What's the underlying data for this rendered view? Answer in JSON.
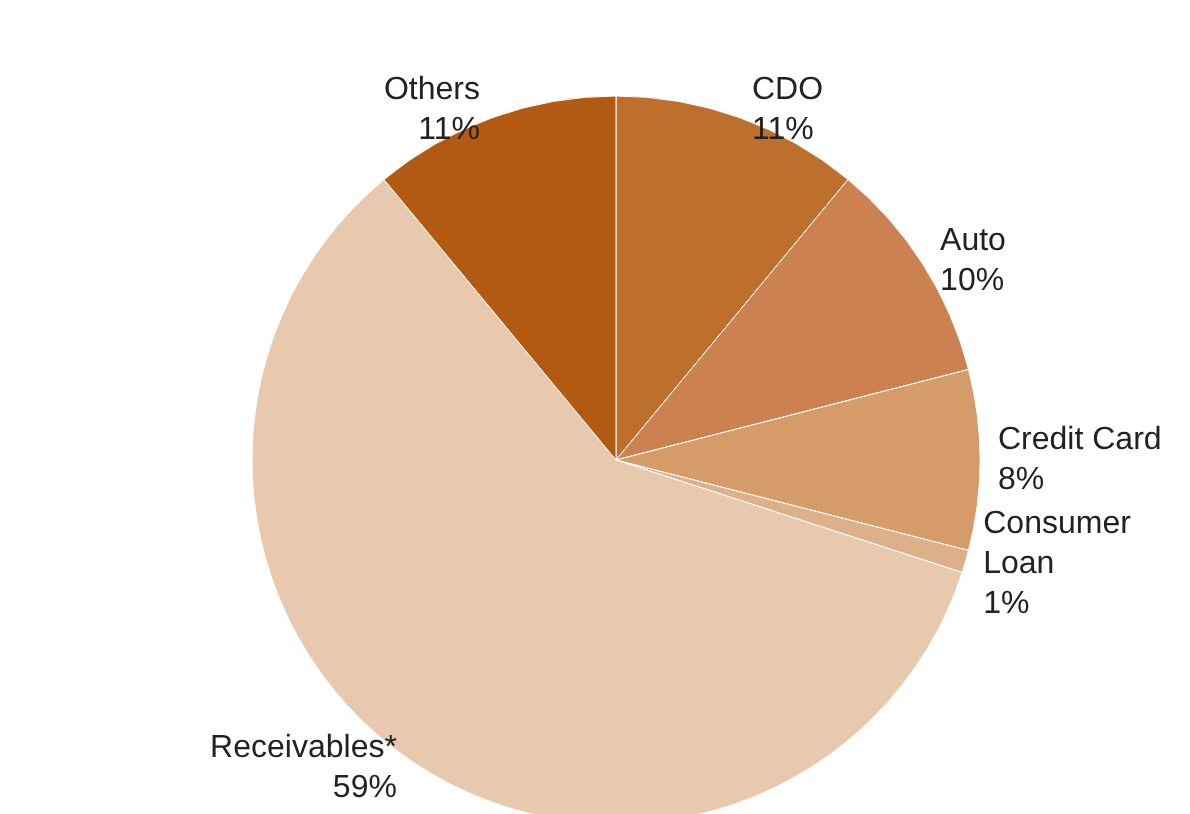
{
  "chart_data": {
    "type": "pie",
    "categories": [
      "CDO",
      "Auto",
      "Credit Card",
      "Consumer Loan",
      "Receivables*",
      "Others"
    ],
    "values": [
      11,
      10,
      8,
      1,
      59,
      11
    ],
    "value_labels": [
      "11%",
      "10%",
      "8%",
      "1%",
      "59%",
      "11%"
    ],
    "colors": [
      "#bd6f2e",
      "#cb8250",
      "#d59b69",
      "#deb08a",
      "#e9c9ae",
      "#b25912"
    ],
    "legend": false
  }
}
